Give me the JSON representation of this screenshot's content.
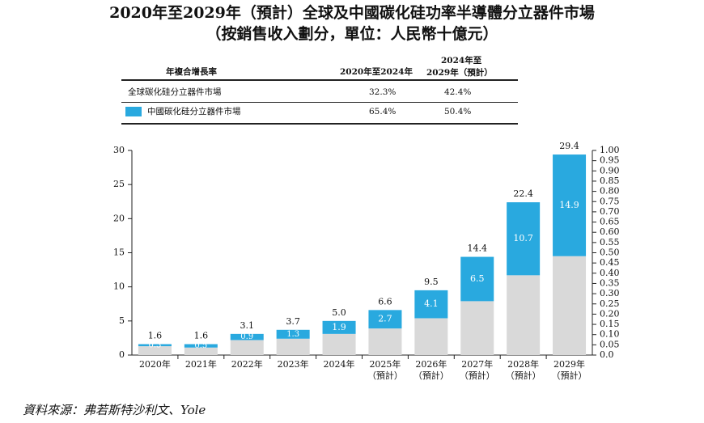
{
  "title": "2020年至2029年（預計）全球及中國碳化硅功率半導體分立器件市場",
  "subtitle": "（按銷售收入劃分，單位：人民幣十億元）",
  "table": {
    "header_label": "年複合增長率",
    "col1": "2020年至2024年",
    "col2_line1": "2024年至",
    "col2_line2": "2029年（預計）",
    "rows": [
      {
        "label": "全球碳化硅分立器件市場",
        "v1": "32.3%",
        "v2": "42.4%"
      },
      {
        "label": "中國碳化硅分立器件市場",
        "v1": "65.4%",
        "v2": "50.4%"
      }
    ]
  },
  "source": "資料來源：弗若斯特沙利文、Yole",
  "chart_data": {
    "type": "bar",
    "stacked": true,
    "categories": [
      {
        "line1": "2020年",
        "line2": ""
      },
      {
        "line1": "2021年",
        "line2": ""
      },
      {
        "line1": "2022年",
        "line2": ""
      },
      {
        "line1": "2023年",
        "line2": ""
      },
      {
        "line1": "2024年",
        "line2": ""
      },
      {
        "line1": "2025年",
        "line2": "（預計）"
      },
      {
        "line1": "2026年",
        "line2": "（預計）"
      },
      {
        "line1": "2027年",
        "line2": "（預計）"
      },
      {
        "line1": "2028年",
        "line2": "（預計）"
      },
      {
        "line1": "2029年",
        "line2": "（預計）"
      }
    ],
    "totals": [
      1.6,
      1.6,
      3.1,
      3.7,
      5.0,
      6.6,
      9.5,
      14.4,
      22.4,
      29.4
    ],
    "china": [
      0.3,
      0.5,
      0.9,
      1.3,
      1.9,
      2.7,
      4.1,
      6.5,
      10.7,
      14.9
    ],
    "total_labels": [
      "1.6",
      "1.6",
      "3.1",
      "3.7",
      "5.0",
      "6.6",
      "9.5",
      "14.4",
      "22.4",
      "29.4"
    ],
    "china_labels": [
      "0.3",
      "0.5",
      "0.9",
      "1.3",
      "1.9",
      "2.7",
      "4.1",
      "6.5",
      "10.7",
      "14.9"
    ],
    "series_colors": {
      "china": "#29a9df",
      "rest": "#d9d9d9"
    },
    "ylim_left": [
      0,
      30
    ],
    "yticks_left": [
      "0",
      "5",
      "10",
      "15",
      "20",
      "25",
      "30"
    ],
    "ylim_right": [
      0,
      1.0
    ],
    "yticks_right": [
      "0.0",
      "0.05",
      "0.10",
      "0.15",
      "0.20",
      "0.25",
      "0.30",
      "0.35",
      "0.40",
      "0.45",
      "0.50",
      "0.55",
      "0.60",
      "0.65",
      "0.70",
      "0.75",
      "0.80",
      "0.85",
      "0.90",
      "0.95",
      "1.00"
    ],
    "grid": false
  }
}
